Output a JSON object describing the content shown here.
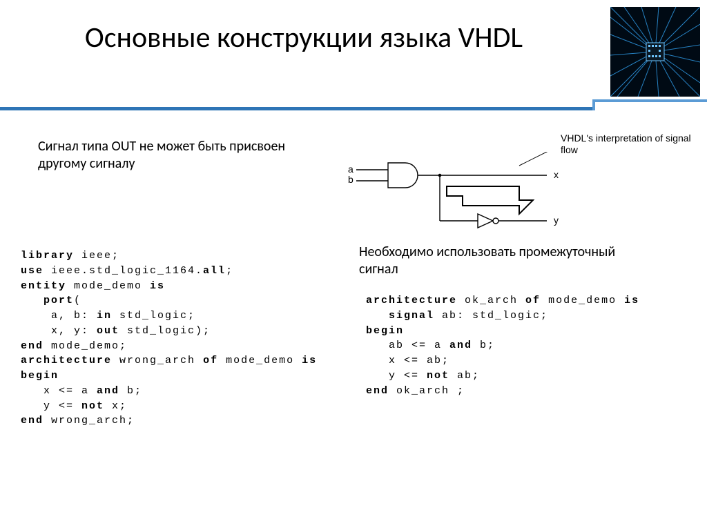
{
  "title": "Основные конструкции языка VHDL",
  "intro": "Сигнал типа OUT не может быть присвоен другому сигналу",
  "diagram_label": "VHDL's interpretation of signal flow",
  "diagram": {
    "input_a": "a",
    "input_b": "b",
    "output_x": "x",
    "output_y": "y"
  },
  "note_right": "Необходимо использовать промежуточный сигнал",
  "code1_lines": [
    {
      "t": "library",
      "b": true
    },
    {
      "t": " ieee;"
    },
    "\n",
    {
      "t": "use",
      "b": true
    },
    {
      "t": " ieee.std_logic_1164."
    },
    {
      "t": "all",
      "b": true
    },
    {
      "t": ";"
    },
    "\n",
    {
      "t": "entity",
      "b": true
    },
    {
      "t": " mode_demo "
    },
    {
      "t": "is",
      "b": true
    },
    "\n",
    {
      "t": "   "
    },
    {
      "t": "port",
      "b": true
    },
    {
      "t": "("
    },
    "\n",
    {
      "t": "    a, b: "
    },
    {
      "t": "in",
      "b": true
    },
    {
      "t": " std_logic;"
    },
    "\n",
    {
      "t": "    x, y: "
    },
    {
      "t": "out",
      "b": true
    },
    {
      "t": " std_logic);"
    },
    "\n",
    {
      "t": "end",
      "b": true
    },
    {
      "t": " mode_demo;"
    },
    "\n",
    {
      "t": "architecture",
      "b": true
    },
    {
      "t": " wrong_arch "
    },
    {
      "t": "of",
      "b": true
    },
    {
      "t": " mode_demo "
    },
    {
      "t": "is",
      "b": true
    },
    "\n",
    {
      "t": "begin",
      "b": true
    },
    "\n",
    {
      "t": "   x <= a "
    },
    {
      "t": "and",
      "b": true
    },
    {
      "t": " b;"
    },
    "\n",
    {
      "t": "   y <= "
    },
    {
      "t": "not",
      "b": true
    },
    {
      "t": " x;"
    },
    "\n",
    {
      "t": "end",
      "b": true
    },
    {
      "t": " wrong_arch;"
    }
  ],
  "code2_lines": [
    {
      "t": "architecture",
      "b": true
    },
    {
      "t": " ok_arch "
    },
    {
      "t": "of",
      "b": true
    },
    {
      "t": " mode_demo "
    },
    {
      "t": "is",
      "b": true
    },
    "\n",
    {
      "t": "   "
    },
    {
      "t": "signal",
      "b": true
    },
    {
      "t": " ab: std_logic;"
    },
    "\n",
    {
      "t": "begin",
      "b": true
    },
    "\n",
    {
      "t": "   ab <= a "
    },
    {
      "t": "and",
      "b": true
    },
    {
      "t": " b;"
    },
    "\n",
    {
      "t": "   x <= ab;"
    },
    "\n",
    {
      "t": "   y <= "
    },
    {
      "t": "not",
      "b": true
    },
    {
      "t": " ab;"
    },
    "\n",
    {
      "t": "end",
      "b": true
    },
    {
      "t": " ok_arch ;"
    }
  ],
  "colors": {
    "rule": "#2e75b6",
    "rule_light": "#5b9bd5",
    "chip_bg": "#000810",
    "chip_trace": "#2b8fd6"
  }
}
